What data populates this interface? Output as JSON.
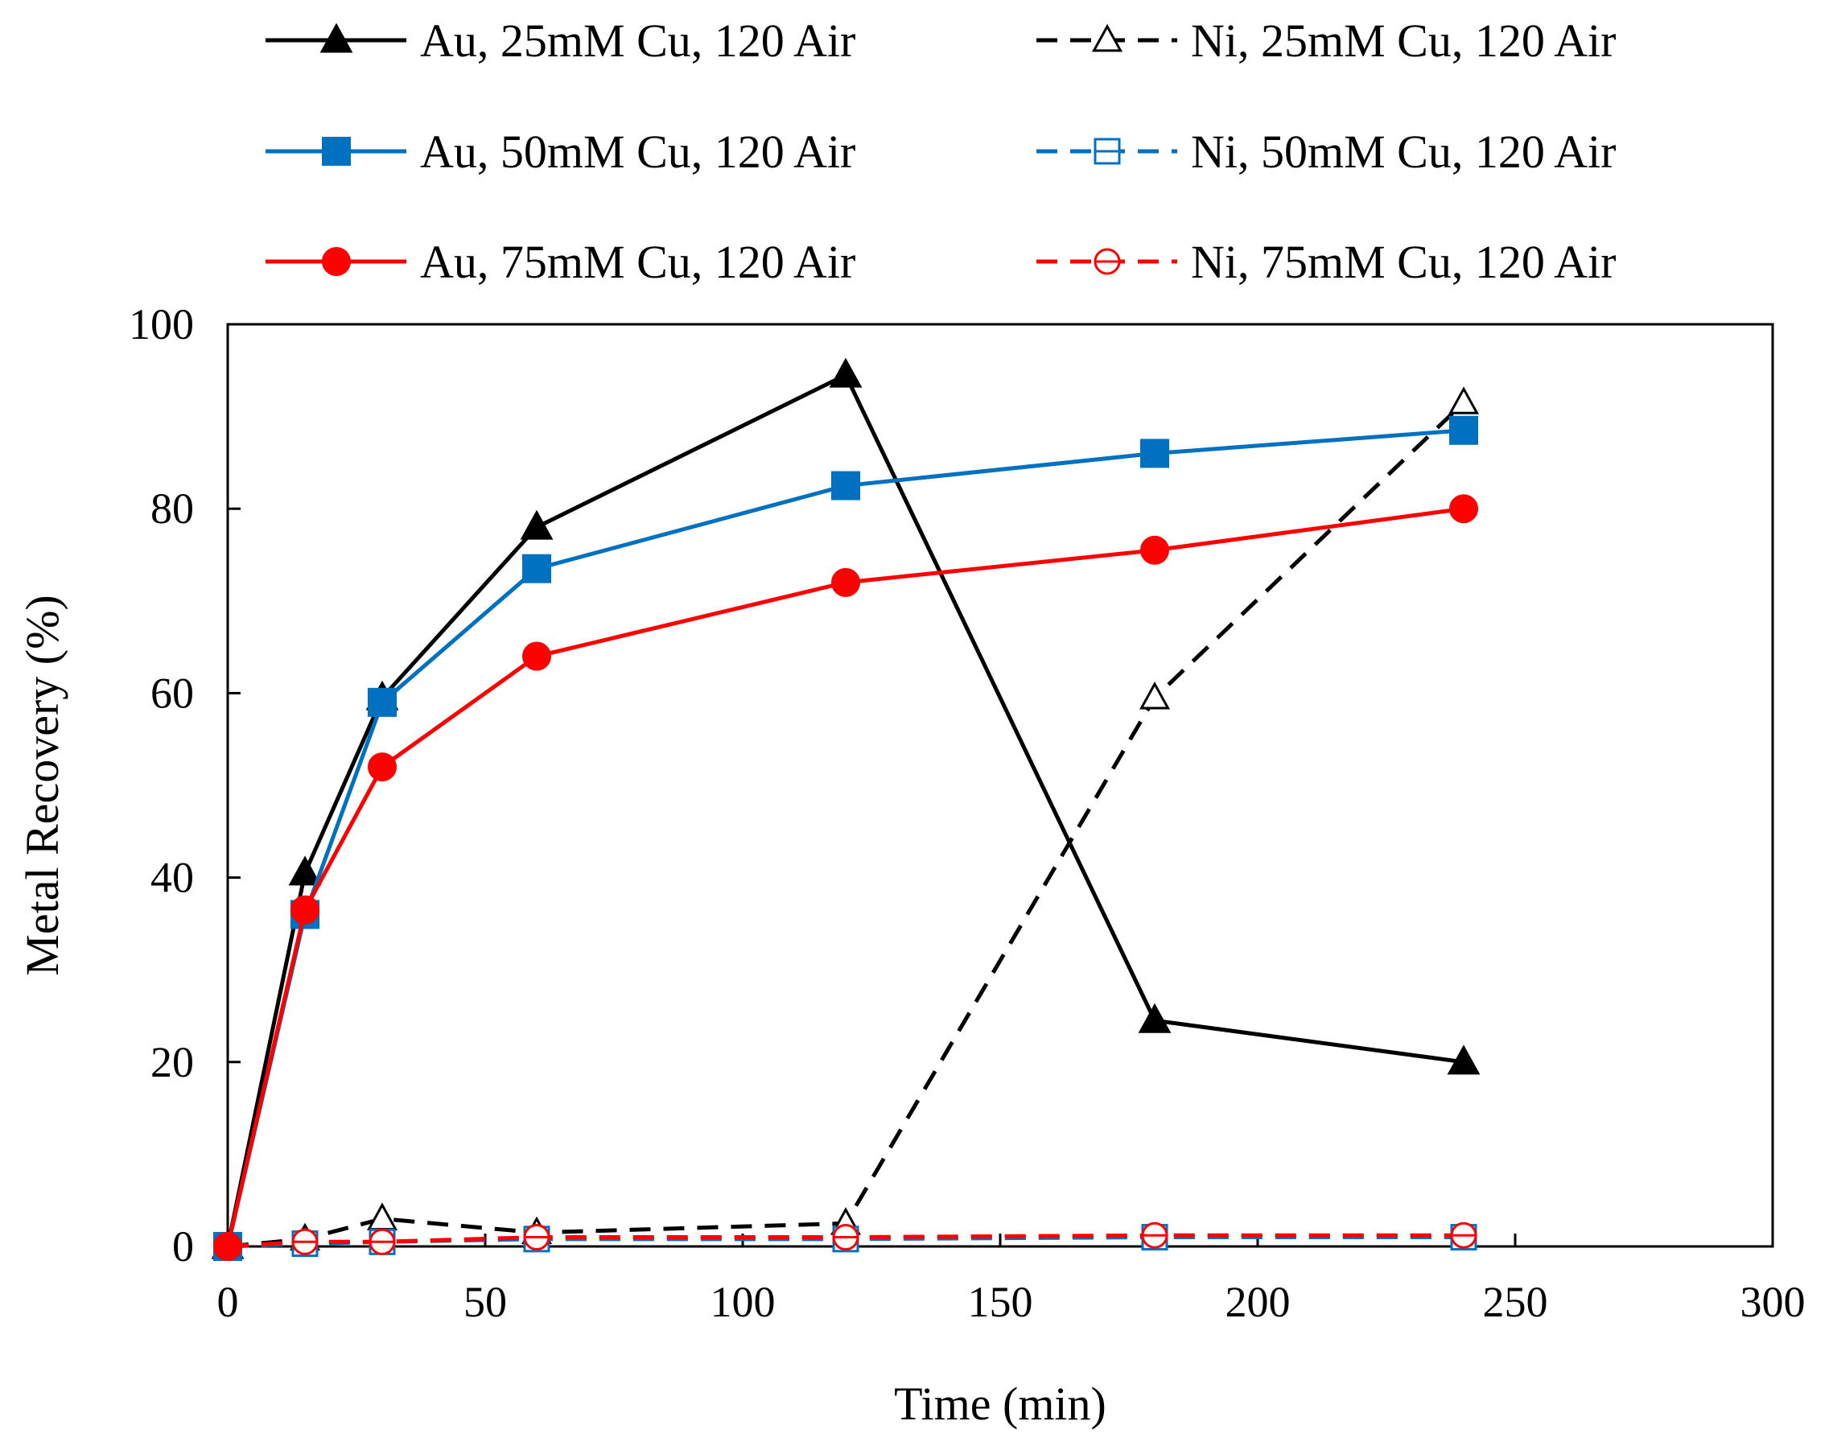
{
  "chart_data": {
    "type": "line",
    "title": "",
    "xlabel": "Time (min)",
    "ylabel": "Metal Recovery (%)",
    "xlim": [
      0,
      300
    ],
    "ylim": [
      0,
      100
    ],
    "xticks": [
      0,
      50,
      100,
      150,
      200,
      250,
      300
    ],
    "yticks": [
      0,
      20,
      40,
      60,
      80,
      100
    ],
    "grid": false,
    "legend_position": "top",
    "x": [
      0,
      15,
      30,
      60,
      120,
      180,
      240
    ],
    "series": [
      {
        "name": "Au, 25mM Cu, 120 Air",
        "color": "#000000",
        "dashed": false,
        "marker": "triangle",
        "filled": true,
        "values": [
          0,
          40.5,
          59.5,
          78,
          94.5,
          24.5,
          20
        ]
      },
      {
        "name": "Au, 50mM Cu, 120 Air",
        "color": "#0070C0",
        "dashed": false,
        "marker": "square",
        "filled": true,
        "values": [
          0,
          36,
          59,
          73.5,
          82.5,
          86,
          88.5
        ]
      },
      {
        "name": "Au, 75mM Cu, 120 Air",
        "color": "#FF0000",
        "dashed": false,
        "marker": "circle",
        "filled": true,
        "values": [
          0,
          36.5,
          52,
          64,
          72,
          75.5,
          80
        ]
      },
      {
        "name": "Ni, 25mM Cu, 120 Air",
        "color": "#000000",
        "dashed": true,
        "marker": "triangle",
        "filled": false,
        "values": [
          0,
          0.8,
          3,
          1.5,
          2.5,
          59.5,
          91.5
        ]
      },
      {
        "name": "Ni, 50mM Cu, 120 Air",
        "color": "#0070C0",
        "dashed": true,
        "marker": "square",
        "filled": false,
        "values": [
          0,
          0.3,
          0.5,
          0.8,
          0.8,
          1,
          1
        ]
      },
      {
        "name": "Ni, 75mM Cu, 120 Air",
        "color": "#FF0000",
        "dashed": true,
        "marker": "circle",
        "filled": false,
        "values": [
          0,
          0.5,
          0.5,
          1,
          1,
          1.2,
          1.2
        ]
      }
    ]
  }
}
